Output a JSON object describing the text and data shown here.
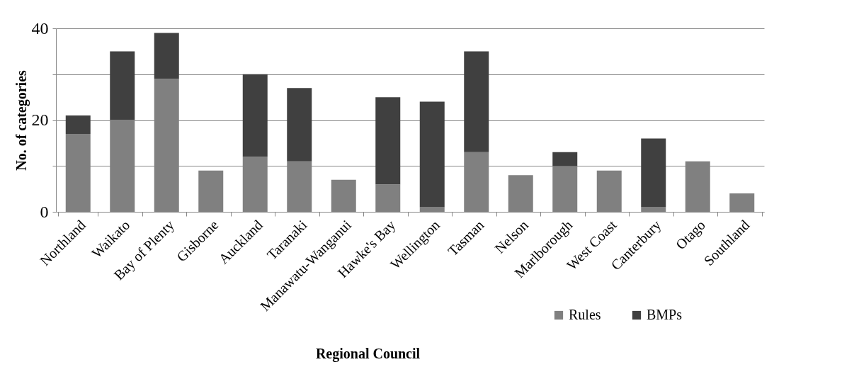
{
  "chart_data": {
    "type": "bar",
    "stacked": true,
    "xlabel": "Regional Council",
    "ylabel": "No. of categories",
    "categories": [
      "Northland",
      "Waikato",
      "Bay of Plenty",
      "Gisborne",
      "Auckland",
      "Taranaki",
      "Manawatu-Wanganui",
      "Hawke's Bay",
      "Wellington",
      "Tasman",
      "Nelson",
      "Marlborough",
      "West Coast",
      "Canterbury",
      "Otago",
      "Southland"
    ],
    "series": [
      {
        "name": "Rules",
        "color": "#808080",
        "values": [
          17,
          20,
          29,
          9,
          12,
          11,
          7,
          6,
          1,
          13,
          8,
          10,
          9,
          1,
          11,
          4
        ]
      },
      {
        "name": "BMPs",
        "color": "#404040",
        "values": [
          4,
          15,
          10,
          0,
          18,
          16,
          0,
          19,
          23,
          22,
          0,
          3,
          0,
          15,
          0,
          0
        ]
      }
    ],
    "ylim": [
      0,
      40
    ],
    "yticks": [
      0,
      {
        "value": 10,
        "label": null
      },
      20,
      {
        "value": 30,
        "label": null
      },
      40
    ],
    "grid": "y",
    "legend": "bottom right"
  }
}
